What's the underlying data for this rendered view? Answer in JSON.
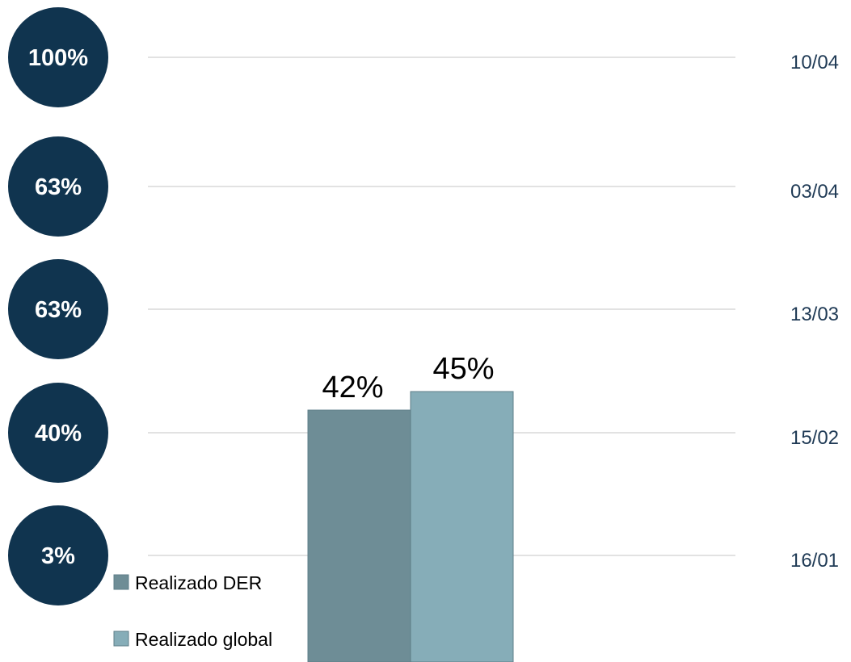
{
  "chart_data": {
    "type": "bar",
    "categories": [
      ""
    ],
    "series": [
      {
        "name": "Realizado DER",
        "values": [
          42
        ],
        "label": "42%",
        "color": "#6e8d96"
      },
      {
        "name": "Realizado global",
        "values": [
          45
        ],
        "label": "45%",
        "color": "#86adb8"
      }
    ],
    "milestones": [
      {
        "percent": "100%",
        "date": "10/04"
      },
      {
        "percent": "63%",
        "date": "03/04"
      },
      {
        "percent": "63%",
        "date": "13/03"
      },
      {
        "percent": "40%",
        "date": "15/02"
      },
      {
        "percent": "3%",
        "date": "16/01"
      }
    ],
    "title": "",
    "legend": "bottom-left",
    "grid": true,
    "colors": {
      "circle": "#10344f",
      "gridline": "#d9d9d9",
      "date_text": "#1f3a55"
    }
  }
}
